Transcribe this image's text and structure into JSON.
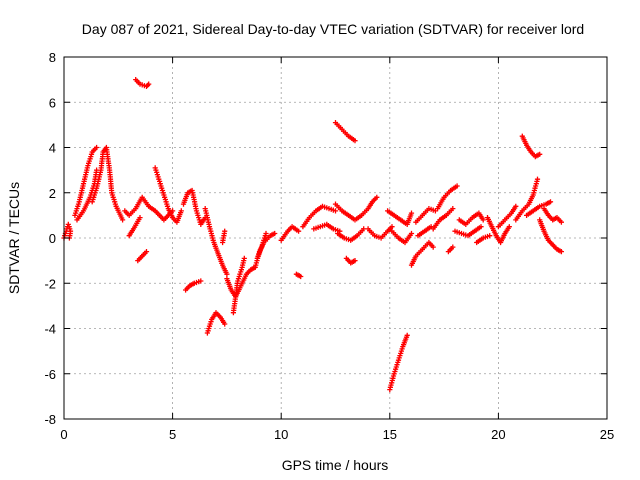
{
  "chart_data": {
    "type": "scatter",
    "title": "Day 087 of 2021, Sidereal Day-to-day VTEC variation (SDTVAR) for receiver lord",
    "xlabel": "GPS time / hours",
    "ylabel": "SDTVAR / TECUs",
    "xlim": [
      0,
      25
    ],
    "ylim": [
      -8,
      8
    ],
    "xticks": [
      0,
      5,
      10,
      15,
      20,
      25
    ],
    "yticks": [
      -8,
      -6,
      -4,
      -2,
      0,
      2,
      4,
      6,
      8
    ],
    "grid": true,
    "marker": "plus",
    "color": "#ff0000",
    "series": [
      {
        "name": "SDTVAR",
        "segments": [
          [
            [
              0.0,
              0.0
            ],
            [
              0.1,
              0.3
            ],
            [
              0.2,
              0.6
            ],
            [
              0.3,
              0.3
            ],
            [
              0.25,
              0.0
            ]
          ],
          [
            [
              0.5,
              1.0
            ],
            [
              0.7,
              1.6
            ],
            [
              0.9,
              2.4
            ],
            [
              1.1,
              3.2
            ],
            [
              1.3,
              3.8
            ],
            [
              1.5,
              4.0
            ]
          ],
          [
            [
              0.6,
              0.8
            ],
            [
              0.9,
              1.2
            ],
            [
              1.2,
              1.8
            ],
            [
              1.4,
              2.4
            ],
            [
              1.5,
              3.0
            ]
          ],
          [
            [
              1.3,
              1.6
            ],
            [
              1.5,
              2.2
            ],
            [
              1.7,
              3.0
            ],
            [
              1.8,
              3.8
            ],
            [
              1.95,
              4.0
            ],
            [
              2.1,
              3.0
            ],
            [
              2.2,
              2.0
            ],
            [
              2.4,
              1.4
            ],
            [
              2.7,
              0.8
            ]
          ],
          [
            [
              2.8,
              1.2
            ],
            [
              3.0,
              1.0
            ],
            [
              3.3,
              1.3
            ],
            [
              3.6,
              1.8
            ],
            [
              3.9,
              1.4
            ],
            [
              4.2,
              1.2
            ],
            [
              4.6,
              0.8
            ],
            [
              5.0,
              1.2
            ]
          ],
          [
            [
              3.0,
              0.1
            ],
            [
              3.2,
              0.4
            ],
            [
              3.5,
              0.9
            ]
          ],
          [
            [
              3.3,
              7.0
            ],
            [
              3.5,
              6.8
            ],
            [
              3.8,
              6.7
            ],
            [
              3.9,
              6.8
            ]
          ],
          [
            [
              3.4,
              -1.0
            ],
            [
              3.6,
              -0.8
            ],
            [
              3.8,
              -0.6
            ]
          ],
          [
            [
              4.2,
              3.1
            ],
            [
              4.4,
              2.5
            ],
            [
              4.6,
              1.9
            ],
            [
              4.8,
              1.3
            ],
            [
              5.0,
              0.9
            ],
            [
              5.2,
              0.7
            ],
            [
              5.4,
              1.2
            ]
          ],
          [
            [
              5.5,
              1.5
            ],
            [
              5.7,
              2.0
            ],
            [
              5.9,
              2.1
            ],
            [
              6.1,
              1.2
            ],
            [
              6.3,
              0.6
            ],
            [
              6.5,
              0.9
            ]
          ],
          [
            [
              5.6,
              -2.3
            ],
            [
              5.8,
              -2.1
            ],
            [
              6.0,
              -2.0
            ],
            [
              6.3,
              -1.9
            ]
          ],
          [
            [
              6.5,
              1.3
            ],
            [
              6.7,
              0.5
            ],
            [
              6.9,
              -0.2
            ],
            [
              7.1,
              -0.7
            ],
            [
              7.3,
              -1.2
            ],
            [
              7.5,
              -1.6
            ]
          ],
          [
            [
              6.6,
              -4.2
            ],
            [
              6.8,
              -3.6
            ],
            [
              7.0,
              -3.3
            ],
            [
              7.2,
              -3.5
            ],
            [
              7.4,
              -3.8
            ]
          ],
          [
            [
              7.3,
              -0.2
            ],
            [
              7.4,
              0.3
            ]
          ],
          [
            [
              7.5,
              -1.8
            ],
            [
              7.7,
              -2.3
            ],
            [
              7.9,
              -2.6
            ],
            [
              8.1,
              -2.2
            ],
            [
              8.4,
              -1.6
            ],
            [
              8.6,
              -1.4
            ],
            [
              8.8,
              -1.3
            ]
          ],
          [
            [
              7.8,
              -3.3
            ],
            [
              7.9,
              -2.6
            ],
            [
              8.0,
              -1.9
            ],
            [
              8.2,
              -1.3
            ],
            [
              8.3,
              -0.9
            ]
          ],
          [
            [
              8.8,
              -1.3
            ],
            [
              9.0,
              -0.6
            ],
            [
              9.2,
              -0.2
            ],
            [
              9.5,
              0.1
            ],
            [
              9.7,
              0.2
            ]
          ],
          [
            [
              8.9,
              -0.9
            ],
            [
              9.1,
              -0.4
            ],
            [
              9.3,
              0.2
            ]
          ],
          [
            [
              10.0,
              -0.1
            ],
            [
              10.3,
              0.3
            ],
            [
              10.5,
              0.5
            ],
            [
              10.8,
              0.3
            ]
          ],
          [
            [
              10.7,
              -1.6
            ],
            [
              10.9,
              -1.7
            ]
          ],
          [
            [
              11.0,
              0.5
            ],
            [
              11.3,
              0.9
            ],
            [
              11.6,
              1.2
            ],
            [
              11.9,
              1.4
            ],
            [
              12.2,
              1.3
            ],
            [
              12.5,
              1.2
            ]
          ],
          [
            [
              11.5,
              0.4
            ],
            [
              11.8,
              0.5
            ],
            [
              12.1,
              0.6
            ],
            [
              12.4,
              0.4
            ],
            [
              12.7,
              0.3
            ]
          ],
          [
            [
              12.5,
              5.1
            ],
            [
              12.8,
              4.8
            ],
            [
              13.1,
              4.5
            ],
            [
              13.4,
              4.3
            ]
          ],
          [
            [
              12.5,
              1.5
            ],
            [
              12.8,
              1.2
            ],
            [
              13.1,
              1.0
            ],
            [
              13.4,
              0.8
            ],
            [
              13.7,
              1.0
            ],
            [
              14.0,
              1.3
            ],
            [
              14.2,
              1.6
            ],
            [
              14.4,
              1.8
            ]
          ],
          [
            [
              12.6,
              0.2
            ],
            [
              12.9,
              0.0
            ],
            [
              13.2,
              -0.1
            ],
            [
              13.5,
              0.1
            ],
            [
              13.8,
              0.4
            ]
          ],
          [
            [
              13.0,
              -0.9
            ],
            [
              13.2,
              -1.1
            ],
            [
              13.4,
              -1.0
            ]
          ],
          [
            [
              14.0,
              0.4
            ],
            [
              14.3,
              0.1
            ],
            [
              14.6,
              0.0
            ],
            [
              14.9,
              0.3
            ],
            [
              15.1,
              0.5
            ]
          ],
          [
            [
              14.9,
              1.2
            ],
            [
              15.2,
              1.0
            ],
            [
              15.5,
              0.8
            ],
            [
              15.8,
              0.6
            ],
            [
              16.0,
              1.1
            ]
          ],
          [
            [
              15.0,
              -6.7
            ],
            [
              15.2,
              -6.0
            ],
            [
              15.4,
              -5.4
            ],
            [
              15.6,
              -4.8
            ],
            [
              15.8,
              -4.3
            ]
          ],
          [
            [
              15.1,
              0.3
            ],
            [
              15.4,
              0.0
            ],
            [
              15.7,
              -0.2
            ],
            [
              16.0,
              0.2
            ]
          ],
          [
            [
              16.0,
              -1.2
            ],
            [
              16.2,
              -0.8
            ],
            [
              16.5,
              -0.5
            ],
            [
              16.8,
              -0.2
            ],
            [
              17.0,
              -0.4
            ]
          ],
          [
            [
              16.2,
              0.7
            ],
            [
              16.5,
              1.0
            ],
            [
              16.8,
              1.3
            ],
            [
              17.1,
              1.2
            ]
          ],
          [
            [
              16.3,
              0.1
            ],
            [
              16.6,
              0.3
            ],
            [
              16.9,
              0.5
            ]
          ],
          [
            [
              17.0,
              0.4
            ],
            [
              17.3,
              0.8
            ],
            [
              17.6,
              1.0
            ],
            [
              17.9,
              1.3
            ]
          ],
          [
            [
              17.2,
              1.3
            ],
            [
              17.5,
              1.8
            ],
            [
              17.8,
              2.1
            ],
            [
              18.1,
              2.3
            ]
          ],
          [
            [
              17.7,
              -0.6
            ],
            [
              17.9,
              -0.4
            ]
          ],
          [
            [
              18.0,
              0.3
            ],
            [
              18.3,
              0.2
            ],
            [
              18.6,
              0.1
            ],
            [
              18.9,
              0.3
            ],
            [
              19.2,
              0.5
            ]
          ],
          [
            [
              18.2,
              0.8
            ],
            [
              18.5,
              0.6
            ],
            [
              18.8,
              0.9
            ],
            [
              19.1,
              1.1
            ],
            [
              19.3,
              0.8
            ]
          ],
          [
            [
              19.0,
              -0.2
            ],
            [
              19.3,
              0.0
            ],
            [
              19.6,
              0.1
            ]
          ],
          [
            [
              19.5,
              0.9
            ],
            [
              19.7,
              0.5
            ],
            [
              19.9,
              0.1
            ],
            [
              20.1,
              -0.2
            ],
            [
              20.3,
              0.2
            ],
            [
              20.5,
              0.5
            ]
          ],
          [
            [
              20.0,
              0.5
            ],
            [
              20.3,
              0.8
            ],
            [
              20.6,
              1.1
            ],
            [
              20.8,
              1.4
            ]
          ],
          [
            [
              20.8,
              0.8
            ],
            [
              21.1,
              1.2
            ],
            [
              21.4,
              1.5
            ],
            [
              21.6,
              1.9
            ],
            [
              21.8,
              2.6
            ]
          ],
          [
            [
              21.1,
              4.5
            ],
            [
              21.3,
              4.1
            ],
            [
              21.5,
              3.8
            ],
            [
              21.7,
              3.6
            ],
            [
              21.9,
              3.7
            ]
          ],
          [
            [
              21.3,
              1.0
            ],
            [
              21.6,
              1.2
            ],
            [
              21.9,
              1.4
            ],
            [
              22.2,
              1.5
            ],
            [
              22.4,
              1.6
            ]
          ],
          [
            [
              21.9,
              0.8
            ],
            [
              22.1,
              0.3
            ],
            [
              22.3,
              -0.1
            ],
            [
              22.5,
              -0.3
            ],
            [
              22.7,
              -0.5
            ],
            [
              22.9,
              -0.6
            ]
          ],
          [
            [
              22.1,
              1.3
            ],
            [
              22.3,
              1.0
            ],
            [
              22.5,
              0.8
            ],
            [
              22.7,
              0.9
            ],
            [
              22.9,
              0.7
            ]
          ]
        ]
      }
    ]
  }
}
